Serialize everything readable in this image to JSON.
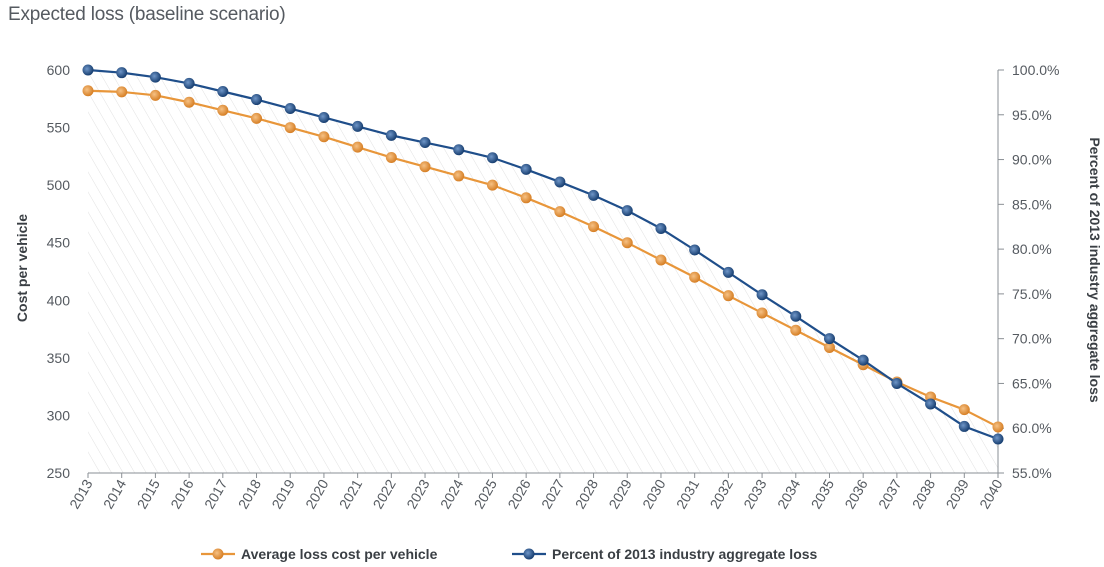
{
  "chart_data": {
    "type": "line",
    "title": "Expected loss (baseline scenario)",
    "x": [
      2013,
      2014,
      2015,
      2016,
      2017,
      2018,
      2019,
      2020,
      2021,
      2022,
      2023,
      2024,
      2025,
      2026,
      2027,
      2028,
      2029,
      2030,
      2031,
      2032,
      2033,
      2034,
      2035,
      2036,
      2037,
      2038,
      2039,
      2040
    ],
    "x_tick_labels": [
      "2013",
      "2014",
      "2015",
      "2016",
      "2017",
      "2018",
      "2019",
      "2020",
      "2021",
      "2022",
      "2023",
      "2024",
      "2025",
      "2026",
      "2027",
      "2028",
      "2029",
      "2030",
      "2031",
      "2032",
      "2033",
      "2034",
      "2035",
      "2036",
      "2037",
      "2038",
      "2039",
      "2040"
    ],
    "ylabel": "Cost per vehicle",
    "ylim": [
      250,
      600
    ],
    "y_ticks": [
      250,
      300,
      350,
      400,
      450,
      500,
      550,
      600
    ],
    "y_tick_labels": [
      "250",
      "300",
      "350",
      "400",
      "450",
      "500",
      "550",
      "600"
    ],
    "y2label": "Percent of 2013 industry aggregate loss",
    "y2lim": [
      55,
      100
    ],
    "y2_ticks": [
      55,
      60,
      65,
      70,
      75,
      80,
      85,
      90,
      95,
      100
    ],
    "y2_tick_labels": [
      "55.0%",
      "60.0%",
      "65.0%",
      "70.0%",
      "75.0%",
      "80.0%",
      "85.0%",
      "90.0%",
      "95.0%",
      "100.0%"
    ],
    "grid": false,
    "legend_position": "bottom",
    "series": [
      {
        "name": "Average loss cost per vehicle",
        "axis": "left",
        "color": "#e8963a",
        "values": [
          582,
          581,
          578,
          572,
          565,
          558,
          550,
          542,
          533,
          524,
          516,
          508,
          500,
          489,
          477,
          464,
          450,
          435,
          420,
          404,
          389,
          374,
          359,
          344,
          329,
          316,
          305,
          290
        ]
      },
      {
        "name": "Percent of 2013 industry aggregate loss",
        "axis": "right",
        "color": "#1f4e8a",
        "values": [
          100.0,
          99.7,
          99.2,
          98.5,
          97.6,
          96.7,
          95.7,
          94.7,
          93.7,
          92.7,
          91.9,
          91.1,
          90.2,
          88.9,
          87.5,
          86.0,
          84.3,
          82.3,
          79.9,
          77.4,
          74.9,
          72.5,
          70.0,
          67.6,
          65.0,
          62.7,
          60.2,
          58.8
        ]
      }
    ]
  }
}
